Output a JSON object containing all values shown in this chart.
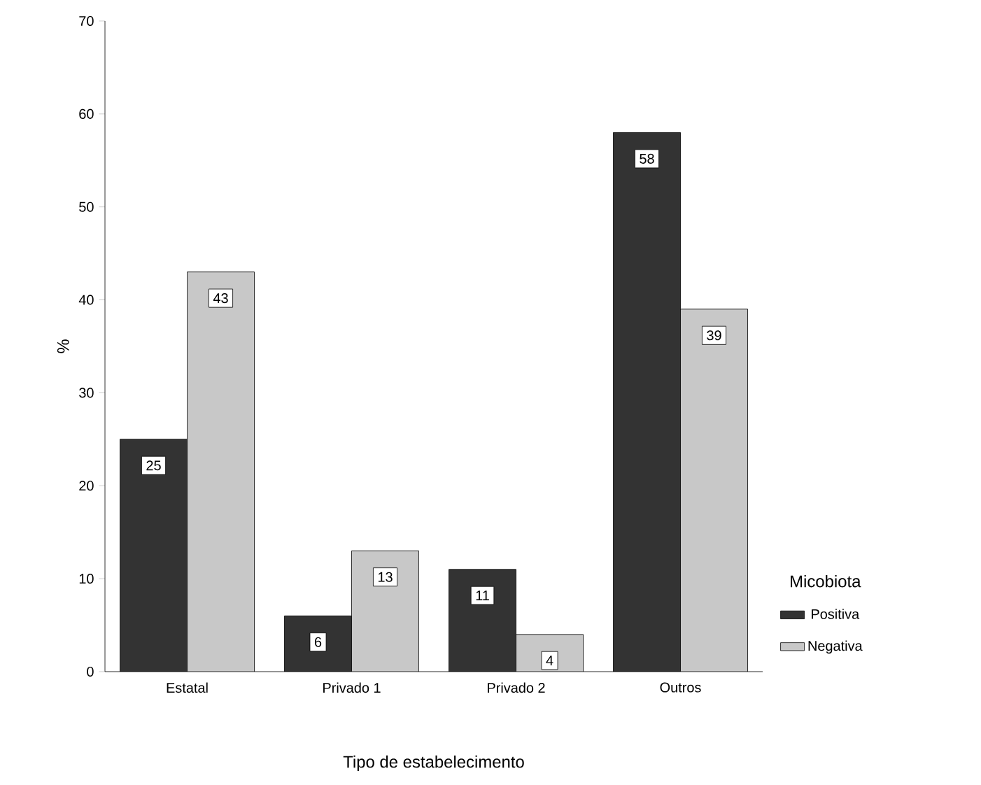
{
  "chart_data": {
    "type": "bar",
    "xlabel": "Tipo de estabelecimento",
    "ylabel": "%",
    "legend_title": "Micobiota",
    "categories": [
      "Estatal",
      "Privado 1",
      "Privado 2",
      "Outros"
    ],
    "series": [
      {
        "name": "Positiva",
        "color": "#333333",
        "values": [
          25,
          6,
          11,
          58
        ]
      },
      {
        "name": "Negativa",
        "color": "#c8c8c8",
        "values": [
          43,
          13,
          4,
          39
        ]
      }
    ],
    "ylim": [
      0,
      70
    ],
    "yticks": [
      0,
      10,
      20,
      30,
      40,
      50,
      60,
      70
    ],
    "data_labels": true,
    "legend": "right",
    "grid": false
  }
}
